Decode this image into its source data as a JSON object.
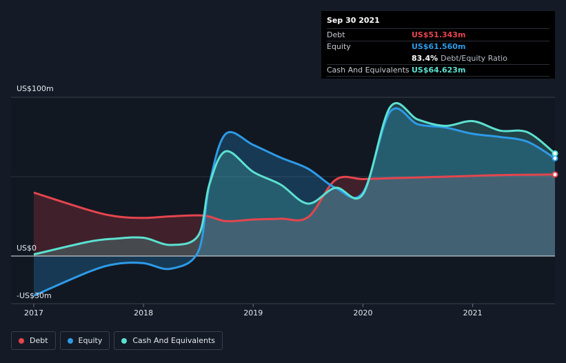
{
  "chart_data": {
    "type": "area",
    "title": "",
    "y_axis": {
      "min": -30,
      "max": 100,
      "unit": "US$m",
      "tick_labels": [
        "US$100m",
        "US$0",
        "-US$30m"
      ]
    },
    "x_axis": {
      "min": 2017,
      "max": 2021.75,
      "tick_labels": [
        "2017",
        "2018",
        "2019",
        "2020",
        "2021"
      ]
    },
    "series": [
      {
        "name": "Debt",
        "color": "#e5454e",
        "points": [
          [
            2017.0,
            40
          ],
          [
            2017.5,
            29
          ],
          [
            2017.75,
            25
          ],
          [
            2018.0,
            24
          ],
          [
            2018.25,
            25
          ],
          [
            2018.55,
            25.5
          ],
          [
            2018.75,
            22
          ],
          [
            2019.0,
            23
          ],
          [
            2019.25,
            23.5
          ],
          [
            2019.5,
            24.5
          ],
          [
            2019.75,
            48
          ],
          [
            2020.0,
            48.5
          ],
          [
            2020.25,
            49
          ],
          [
            2020.5,
            49.5
          ],
          [
            2020.75,
            50
          ],
          [
            2021.0,
            50.5
          ],
          [
            2021.25,
            51
          ],
          [
            2021.5,
            51.2
          ],
          [
            2021.75,
            51.343
          ]
        ]
      },
      {
        "name": "Equity",
        "color": "#2d9be8",
        "points": [
          [
            2017.0,
            -25
          ],
          [
            2017.5,
            -10
          ],
          [
            2017.75,
            -5
          ],
          [
            2018.0,
            -4.5
          ],
          [
            2018.25,
            -8
          ],
          [
            2018.5,
            3
          ],
          [
            2018.6,
            45
          ],
          [
            2018.75,
            77
          ],
          [
            2019.0,
            70
          ],
          [
            2019.25,
            62
          ],
          [
            2019.5,
            55
          ],
          [
            2019.75,
            43
          ],
          [
            2020.0,
            40
          ],
          [
            2020.25,
            91
          ],
          [
            2020.5,
            83
          ],
          [
            2020.75,
            81
          ],
          [
            2021.0,
            77
          ],
          [
            2021.25,
            75
          ],
          [
            2021.5,
            72
          ],
          [
            2021.75,
            61.56
          ]
        ]
      },
      {
        "name": "Cash And Equivalents",
        "color": "#5ce1d1",
        "points": [
          [
            2017.0,
            1
          ],
          [
            2017.5,
            9
          ],
          [
            2017.75,
            11
          ],
          [
            2018.0,
            11.5
          ],
          [
            2018.25,
            7
          ],
          [
            2018.5,
            13
          ],
          [
            2018.6,
            45
          ],
          [
            2018.75,
            66
          ],
          [
            2019.0,
            53
          ],
          [
            2019.25,
            45
          ],
          [
            2019.5,
            33
          ],
          [
            2019.75,
            43
          ],
          [
            2020.0,
            39
          ],
          [
            2020.25,
            94
          ],
          [
            2020.5,
            86
          ],
          [
            2020.75,
            82
          ],
          [
            2021.0,
            85
          ],
          [
            2021.25,
            79
          ],
          [
            2021.5,
            78
          ],
          [
            2021.75,
            64.623
          ]
        ]
      }
    ]
  },
  "tooltip": {
    "date": "Sep 30 2021",
    "rows": [
      {
        "label": "Debt",
        "value": "US$51.343m"
      },
      {
        "label": "Equity",
        "value": "US$61.560m"
      },
      {
        "label": "",
        "value": "83.4%",
        "suffix": "Debt/Equity Ratio"
      },
      {
        "label": "Cash And Equivalents",
        "value": "US$64.623m"
      }
    ]
  },
  "legend": [
    {
      "label": "Debt",
      "color": "#e5454e"
    },
    {
      "label": "Equity",
      "color": "#2d9be8"
    },
    {
      "label": "Cash And Equivalents",
      "color": "#5ce1d1"
    }
  ]
}
